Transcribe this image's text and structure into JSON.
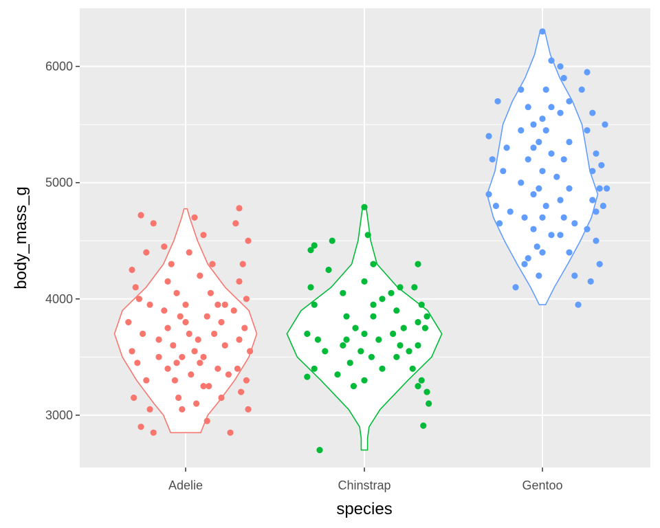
{
  "chart_data": {
    "type": "violin+jitter",
    "xlabel": "species",
    "ylabel": "body_mass_g",
    "categories": [
      "Adelie",
      "Chinstrap",
      "Gentoo"
    ],
    "ylim": [
      2550,
      6500
    ],
    "yticks": [
      3000,
      4000,
      5000,
      6000
    ],
    "grid": true,
    "legend": "none",
    "colors": {
      "Adelie": "#F8766D",
      "Chinstrap": "#00BA38",
      "Gentoo": "#619CFF",
      "panel_bg": "#EBEBEB",
      "grid": "#FFFFFF"
    },
    "violins": [
      {
        "name": "Adelie",
        "profile": [
          [
            2850,
            0.19
          ],
          [
            3000,
            0.28
          ],
          [
            3100,
            0.4
          ],
          [
            3300,
            0.62
          ],
          [
            3500,
            0.8
          ],
          [
            3700,
            0.9
          ],
          [
            3900,
            0.8
          ],
          [
            4100,
            0.5
          ],
          [
            4300,
            0.28
          ],
          [
            4500,
            0.15
          ],
          [
            4700,
            0.05
          ],
          [
            4775,
            0.02
          ]
        ]
      },
      {
        "name": "Chinstrap",
        "profile": [
          [
            2700,
            0.04
          ],
          [
            2800,
            0.04
          ],
          [
            2900,
            0.06
          ],
          [
            3050,
            0.2
          ],
          [
            3300,
            0.55
          ],
          [
            3500,
            0.85
          ],
          [
            3700,
            0.98
          ],
          [
            3900,
            0.8
          ],
          [
            4100,
            0.42
          ],
          [
            4300,
            0.16
          ],
          [
            4500,
            0.08
          ],
          [
            4700,
            0.04
          ],
          [
            4800,
            0.02
          ]
        ]
      },
      {
        "name": "Gentoo",
        "profile": [
          [
            3950,
            0.04
          ],
          [
            4100,
            0.15
          ],
          [
            4300,
            0.32
          ],
          [
            4500,
            0.48
          ],
          [
            4700,
            0.62
          ],
          [
            4900,
            0.7
          ],
          [
            5100,
            0.6
          ],
          [
            5300,
            0.55
          ],
          [
            5500,
            0.5
          ],
          [
            5700,
            0.38
          ],
          [
            5900,
            0.22
          ],
          [
            6100,
            0.1
          ],
          [
            6300,
            0.03
          ]
        ]
      }
    ],
    "points": {
      "Adelie": [
        [
          -0.25,
          4720
        ],
        [
          -0.18,
          4650
        ],
        [
          -0.22,
          4400
        ],
        [
          -0.3,
          4250
        ],
        [
          -0.28,
          4100
        ],
        [
          -0.26,
          4000
        ],
        [
          -0.2,
          3950
        ],
        [
          -0.32,
          3800
        ],
        [
          -0.24,
          3700
        ],
        [
          -0.3,
          3550
        ],
        [
          -0.27,
          3450
        ],
        [
          -0.22,
          3300
        ],
        [
          -0.29,
          3150
        ],
        [
          -0.2,
          3050
        ],
        [
          -0.25,
          2900
        ],
        [
          -0.18,
          2850
        ],
        [
          -0.12,
          4450
        ],
        [
          -0.08,
          4300
        ],
        [
          -0.1,
          4150
        ],
        [
          -0.05,
          4050
        ],
        [
          -0.12,
          3900
        ],
        [
          -0.03,
          3850
        ],
        [
          -0.1,
          3750
        ],
        [
          0.02,
          3700
        ],
        [
          -0.07,
          3600
        ],
        [
          0.05,
          3550
        ],
        [
          -0.02,
          3500
        ],
        [
          0.08,
          3450
        ],
        [
          -0.1,
          3400
        ],
        [
          0.03,
          3350
        ],
        [
          -0.06,
          3300
        ],
        [
          0.1,
          3250
        ],
        [
          -0.04,
          3150
        ],
        [
          0.06,
          3100
        ],
        [
          -0.02,
          3050
        ],
        [
          0.12,
          2950
        ],
        [
          0.05,
          4700
        ],
        [
          0.1,
          4550
        ],
        [
          0.02,
          4400
        ],
        [
          0.15,
          4300
        ],
        [
          0.08,
          4200
        ],
        [
          0.14,
          4050
        ],
        [
          0.18,
          3950
        ],
        [
          0.12,
          3850
        ],
        [
          0.2,
          3800
        ],
        [
          0.16,
          3700
        ],
        [
          0.22,
          3600
        ],
        [
          0.1,
          3500
        ],
        [
          0.18,
          3400
        ],
        [
          0.24,
          3350
        ],
        [
          0.13,
          3250
        ],
        [
          0.2,
          3150
        ],
        [
          0.3,
          4780
        ],
        [
          0.28,
          4650
        ],
        [
          0.35,
          4500
        ],
        [
          0.32,
          4300
        ],
        [
          0.3,
          4150
        ],
        [
          0.34,
          4000
        ],
        [
          0.27,
          3900
        ],
        [
          0.33,
          3750
        ],
        [
          0.3,
          3650
        ],
        [
          0.36,
          3550
        ],
        [
          0.29,
          3400
        ],
        [
          0.34,
          3300
        ],
        [
          0.31,
          3200
        ],
        [
          0.35,
          3050
        ],
        [
          0.25,
          2850
        ],
        [
          -0.15,
          3650
        ],
        [
          0.0,
          3800
        ],
        [
          -0.05,
          3450
        ],
        [
          0.07,
          3650
        ],
        [
          0.0,
          3950
        ],
        [
          -0.15,
          3500
        ],
        [
          0.22,
          3950
        ]
      ],
      "Chinstrap": [
        [
          -0.3,
          4420
        ],
        [
          -0.28,
          4460
        ],
        [
          -0.18,
          4500
        ],
        [
          -0.2,
          4250
        ],
        [
          -0.3,
          4100
        ],
        [
          -0.28,
          3950
        ],
        [
          -0.32,
          3700
        ],
        [
          -0.26,
          3650
        ],
        [
          -0.22,
          3550
        ],
        [
          -0.28,
          3400
        ],
        [
          -0.32,
          3330
        ],
        [
          -0.25,
          2700
        ],
        [
          -0.12,
          4050
        ],
        [
          -0.1,
          3850
        ],
        [
          -0.05,
          3750
        ],
        [
          -0.12,
          3600
        ],
        [
          -0.08,
          3450
        ],
        [
          -0.15,
          3350
        ],
        [
          -0.06,
          3250
        ],
        [
          -0.1,
          3650
        ],
        [
          0.0,
          4790
        ],
        [
          0.02,
          4550
        ],
        [
          0.05,
          4300
        ],
        [
          0.0,
          4150
        ],
        [
          0.05,
          3950
        ],
        [
          0.1,
          4000
        ],
        [
          0.05,
          3850
        ],
        [
          0.0,
          3700
        ],
        [
          0.08,
          3650
        ],
        [
          -0.02,
          3550
        ],
        [
          0.04,
          3500
        ],
        [
          0.1,
          3400
        ],
        [
          0.0,
          3300
        ],
        [
          0.15,
          4050
        ],
        [
          0.2,
          4100
        ],
        [
          0.18,
          3900
        ],
        [
          0.22,
          3750
        ],
        [
          0.16,
          3700
        ],
        [
          0.2,
          3600
        ],
        [
          0.25,
          3550
        ],
        [
          0.18,
          3500
        ],
        [
          0.3,
          4300
        ],
        [
          0.28,
          4100
        ],
        [
          0.32,
          3950
        ],
        [
          0.35,
          3850
        ],
        [
          0.3,
          3800
        ],
        [
          0.34,
          3750
        ],
        [
          0.3,
          3600
        ],
        [
          0.27,
          3400
        ],
        [
          0.32,
          3300
        ],
        [
          0.3,
          3250
        ],
        [
          0.35,
          3200
        ],
        [
          0.36,
          3100
        ],
        [
          0.33,
          2910
        ]
      ],
      "Gentoo": [
        [
          -0.25,
          5700
        ],
        [
          -0.3,
          5400
        ],
        [
          -0.2,
          5300
        ],
        [
          -0.28,
          5200
        ],
        [
          -0.22,
          5100
        ],
        [
          -0.3,
          4900
        ],
        [
          -0.26,
          4800
        ],
        [
          -0.18,
          4750
        ],
        [
          -0.24,
          4650
        ],
        [
          -0.1,
          4300
        ],
        [
          -0.15,
          4100
        ],
        [
          -0.12,
          5800
        ],
        [
          -0.08,
          5650
        ],
        [
          -0.05,
          5500
        ],
        [
          -0.12,
          5450
        ],
        [
          -0.05,
          5300
        ],
        [
          -0.08,
          5200
        ],
        [
          -0.12,
          5000
        ],
        [
          -0.05,
          4900
        ],
        [
          -0.1,
          4700
        ],
        [
          -0.05,
          4600
        ],
        [
          -0.03,
          4450
        ],
        [
          -0.08,
          4350
        ],
        [
          0.0,
          6300
        ],
        [
          0.05,
          6050
        ],
        [
          0.02,
          5800
        ],
        [
          0.05,
          5650
        ],
        [
          0.0,
          5550
        ],
        [
          0.02,
          5450
        ],
        [
          -0.02,
          5350
        ],
        [
          0.05,
          5250
        ],
        [
          0.0,
          5100
        ],
        [
          -0.02,
          4950
        ],
        [
          0.02,
          4800
        ],
        [
          0.0,
          4700
        ],
        [
          0.05,
          4550
        ],
        [
          -0.02,
          4200
        ],
        [
          0.0,
          4400
        ],
        [
          0.1,
          6000
        ],
        [
          0.12,
          5900
        ],
        [
          0.15,
          5700
        ],
        [
          0.1,
          5600
        ],
        [
          0.15,
          5350
        ],
        [
          0.12,
          5200
        ],
        [
          0.08,
          5050
        ],
        [
          0.15,
          4950
        ],
        [
          0.1,
          4850
        ],
        [
          0.12,
          4700
        ],
        [
          0.18,
          4650
        ],
        [
          0.1,
          4550
        ],
        [
          0.15,
          4400
        ],
        [
          0.18,
          4200
        ],
        [
          0.25,
          5950
        ],
        [
          0.22,
          5800
        ],
        [
          0.28,
          5600
        ],
        [
          0.25,
          5450
        ],
        [
          0.3,
          5250
        ],
        [
          0.28,
          5100
        ],
        [
          0.32,
          4950
        ],
        [
          0.28,
          4850
        ],
        [
          0.3,
          4750
        ],
        [
          0.25,
          4600
        ],
        [
          0.32,
          4300
        ],
        [
          0.27,
          4150
        ],
        [
          0.2,
          3950
        ],
        [
          0.35,
          5500
        ],
        [
          0.33,
          5150
        ],
        [
          0.36,
          4950
        ],
        [
          0.34,
          4800
        ],
        [
          0.3,
          4500
        ]
      ]
    }
  }
}
